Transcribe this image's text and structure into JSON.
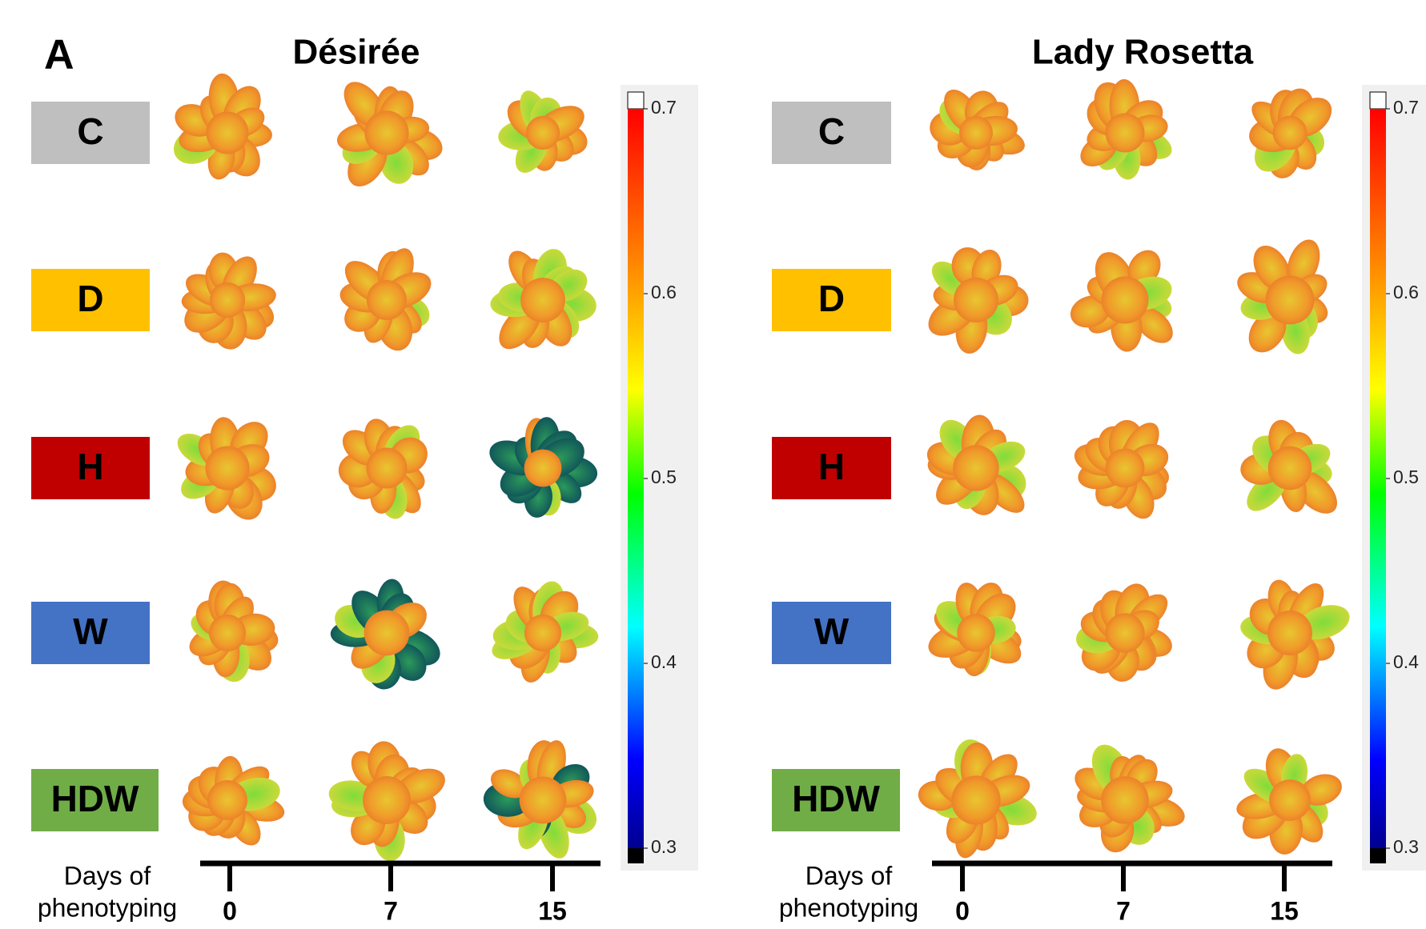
{
  "panel_label": "A",
  "panels": [
    {
      "title": "Désirée",
      "rows": [
        {
          "label": "C",
          "color": "#bfbfbf"
        },
        {
          "label": "D",
          "color": "#ffc000"
        },
        {
          "label": "H",
          "color": "#c00000"
        },
        {
          "label": "W",
          "color": "#4472c4"
        },
        {
          "label": "HDW",
          "color": "#70ad47"
        }
      ],
      "days_label": [
        "Days of",
        "phenotyping"
      ],
      "days": [
        "0",
        "7",
        "15"
      ],
      "colorbar": {
        "lim": [
          0.3,
          0.7
        ],
        "ticks": [
          0.7,
          0.6,
          0.5,
          0.4,
          0.3
        ]
      }
    },
    {
      "title": "Lady Rosetta",
      "rows": [
        {
          "label": "C",
          "color": "#bfbfbf"
        },
        {
          "label": "D",
          "color": "#ffc000"
        },
        {
          "label": "H",
          "color": "#c00000"
        },
        {
          "label": "W",
          "color": "#4472c4"
        },
        {
          "label": "HDW",
          "color": "#70ad47"
        }
      ],
      "days_label": [
        "Days of",
        "phenotyping"
      ],
      "days": [
        "0",
        "7",
        "15"
      ],
      "colorbar": {
        "lim": [
          0.3,
          0.7
        ],
        "ticks": [
          0.7,
          0.6,
          0.5,
          0.4,
          0.3
        ]
      }
    }
  ]
}
